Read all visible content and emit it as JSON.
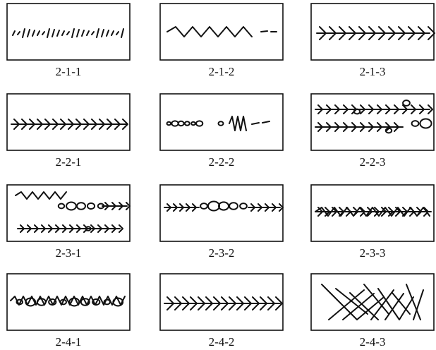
{
  "panels": [
    {
      "label": "2-1-1"
    },
    {
      "label": "2-1-2"
    },
    {
      "label": "2-1-3"
    },
    {
      "label": "2-2-1"
    },
    {
      "label": "2-2-2"
    },
    {
      "label": "2-2-3"
    },
    {
      "label": "2-3-1"
    },
    {
      "label": "2-3-2"
    },
    {
      "label": "2-3-3"
    },
    {
      "label": "2-4-1"
    },
    {
      "label": "2-4-2"
    },
    {
      "label": "2-4-3"
    }
  ]
}
